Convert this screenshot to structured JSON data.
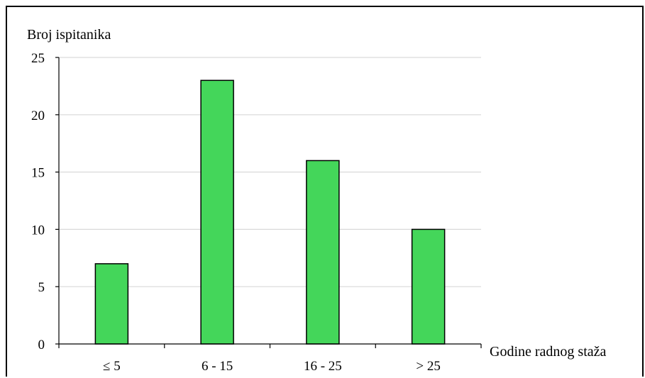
{
  "chart_data": {
    "type": "bar",
    "categories": [
      "≤ 5",
      "6 - 15",
      "16 - 25",
      "> 25"
    ],
    "values": [
      7,
      23,
      16,
      10
    ],
    "title": "",
    "xlabel": "Godine radnog staža",
    "ylabel": "Broj ispitanika",
    "ylim": [
      0,
      25
    ],
    "yticks": [
      "0",
      "5",
      "10",
      "15",
      "20",
      "25"
    ],
    "grid": true,
    "bar_color": "#44d65a",
    "bar_border": "#000000",
    "grid_color": "#d9d9d9"
  }
}
